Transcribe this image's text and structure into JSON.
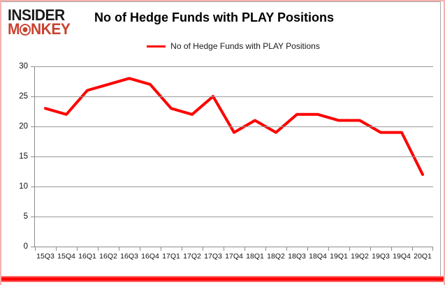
{
  "logo": {
    "line1": "INSIDER",
    "line2_prefix": "M",
    "line2_suffix": "NKEY",
    "alt": "Insider Monkey",
    "color_black": "#1b1b1b",
    "color_red": "#c8422f"
  },
  "header": {
    "title": "No of Hedge Funds with PLAY Positions"
  },
  "legend": {
    "label": "No of Hedge Funds with PLAY Positions",
    "swatch_color": "#ff0000"
  },
  "chart_data": {
    "type": "line",
    "title": "No of Hedge Funds with PLAY Positions",
    "categories": [
      "15Q3",
      "15Q4",
      "16Q1",
      "16Q2",
      "16Q3",
      "16Q4",
      "17Q1",
      "17Q2",
      "17Q3",
      "17Q4",
      "18Q1",
      "18Q2",
      "18Q3",
      "18Q4",
      "19Q1",
      "19Q2",
      "19Q3",
      "19Q4",
      "20Q1"
    ],
    "series": [
      {
        "name": "No of Hedge Funds with PLAY Positions",
        "color": "#ff0000",
        "values": [
          23,
          22,
          26,
          27,
          28,
          27,
          23,
          22,
          25,
          19,
          21,
          19,
          22,
          22,
          21,
          21,
          19,
          19,
          12
        ]
      }
    ],
    "xlabel": "",
    "ylabel": "",
    "ylim": [
      0,
      30
    ],
    "ytick_step": 5,
    "grid": true,
    "legend_position": "top"
  },
  "frame": {
    "border_pink": "#f5b2ae",
    "bottom_bar_red": "#ff0000",
    "inner_border_gray": "#a6a6a6",
    "grid_color": "#999999",
    "axis_color": "#8c8c8c"
  }
}
